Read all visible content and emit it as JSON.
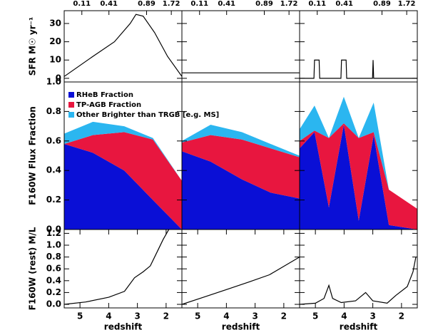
{
  "chart_data": [
    {
      "type": "line",
      "ylabel": "SFR M☉ yr⁻¹",
      "top_tick_labels": [
        "0.11",
        "0.41",
        "0.89",
        "1.72"
      ],
      "xlim": [
        5.55,
        1.45
      ],
      "ylim": [
        -2,
        37
      ],
      "yticks": [
        0,
        10,
        20,
        30
      ],
      "color": "#000000",
      "x": [
        5.55,
        4.55,
        3.8,
        3.25,
        3.05,
        2.8,
        2.4,
        1.95,
        1.45
      ],
      "values": [
        1,
        12,
        20,
        30,
        35,
        34,
        25,
        12,
        1
      ]
    },
    {
      "type": "line",
      "top_tick_labels": [
        "0.11",
        "0.41",
        "0.89",
        "1.72"
      ],
      "xlim": [
        5.55,
        1.45
      ],
      "ylim": [
        -2,
        37
      ],
      "yticks": [
        0,
        10,
        20,
        30
      ],
      "color": "#000000",
      "x": [
        5.55,
        1.45
      ],
      "values": [
        3,
        3
      ]
    },
    {
      "type": "line",
      "top_tick_labels": [
        "0.11",
        "0.41",
        "0.89",
        "1.72"
      ],
      "xlim": [
        5.55,
        1.45
      ],
      "ylim": [
        -2,
        37
      ],
      "yticks": [
        0,
        10,
        20,
        30
      ],
      "color": "#000000",
      "x": [
        5.55,
        5.05,
        5.03,
        4.87,
        4.85,
        4.11,
        4.09,
        3.93,
        3.91,
        3.01,
        2.99,
        2.97,
        1.45
      ],
      "values": [
        0,
        0,
        10,
        10,
        0,
        0,
        10,
        10,
        0,
        0,
        10,
        0,
        0
      ]
    },
    {
      "type": "area",
      "ylabel": "F160W Flux Fraction",
      "xlim": [
        5.55,
        1.45
      ],
      "ylim": [
        0,
        1
      ],
      "yticks": [
        {
          "value": 0,
          "label": "0.0"
        },
        0.2,
        0.4,
        0.6,
        0.8,
        {
          "value": 1,
          "label": "1.0"
        }
      ],
      "x": [
        5.55,
        4.55,
        3.46,
        2.46,
        1.45
      ],
      "series": [
        {
          "name": "RHeB Fraction",
          "color": "#0a0fd6",
          "values": [
            0.58,
            0.52,
            0.4,
            0.2,
            0.0
          ]
        },
        {
          "name": "TP-AGB Fraction",
          "color": "#e8163f",
          "values": [
            0.0,
            0.12,
            0.26,
            0.41,
            0.33
          ]
        },
        {
          "name": "Other Brighter than TRGB [e.g. MS]",
          "color": "#2bb6f0",
          "values": [
            0.07,
            0.09,
            0.04,
            0.01,
            0.0
          ]
        }
      ]
    },
    {
      "type": "area",
      "xlim": [
        5.55,
        1.45
      ],
      "ylim": [
        0,
        1
      ],
      "yticks": [
        0,
        0.2,
        0.4,
        0.6,
        0.8,
        1
      ],
      "x": [
        5.55,
        4.55,
        3.46,
        2.46,
        1.45
      ],
      "series": [
        {
          "color": "#0a0fd6",
          "values": [
            0.53,
            0.46,
            0.34,
            0.25,
            0.21
          ]
        },
        {
          "color": "#e8163f",
          "values": [
            0.06,
            0.18,
            0.27,
            0.3,
            0.28
          ]
        },
        {
          "color": "#2bb6f0",
          "values": [
            0.01,
            0.07,
            0.05,
            0.03,
            0.01
          ]
        }
      ]
    },
    {
      "type": "area",
      "xlim": [
        5.55,
        1.45
      ],
      "ylim": [
        0,
        1
      ],
      "yticks": [
        0,
        0.2,
        0.4,
        0.6,
        0.8,
        1
      ],
      "x": [
        5.55,
        5.03,
        4.53,
        4.01,
        3.49,
        2.97,
        2.44,
        1.45
      ],
      "series": [
        {
          "color": "#0a0fd6",
          "values": [
            0.55,
            0.66,
            0.15,
            0.71,
            0.06,
            0.64,
            0.03,
            0.0
          ]
        },
        {
          "color": "#e8163f",
          "values": [
            0.05,
            0.01,
            0.47,
            0.01,
            0.56,
            0.02,
            0.24,
            0.14
          ]
        },
        {
          "color": "#2bb6f0",
          "values": [
            0.08,
            0.17,
            0.0,
            0.18,
            0.0,
            0.2,
            0.0,
            0.0
          ]
        }
      ]
    },
    {
      "type": "line",
      "ylabel": "F160W (rest) M/L",
      "xlabel": "redshift",
      "xlim": [
        5.55,
        1.45
      ],
      "xticks": [
        5,
        4,
        3,
        2
      ],
      "ylim": [
        -0.06,
        1.265
      ],
      "yticks": [
        {
          "value": 0,
          "label": "0.0"
        },
        0.2,
        0.4,
        0.6,
        0.8,
        {
          "value": 1,
          "label": "1.0"
        },
        1.2
      ],
      "color": "#000000",
      "x": [
        5.55,
        4.8,
        4.0,
        3.45,
        3.1,
        2.8,
        2.55,
        2.3,
        2.1,
        1.9
      ],
      "values": [
        0.0,
        0.04,
        0.12,
        0.22,
        0.45,
        0.55,
        0.65,
        0.9,
        1.1,
        1.27
      ]
    },
    {
      "type": "line",
      "xlabel": "redshift",
      "xlim": [
        5.55,
        1.45
      ],
      "xticks": [
        5,
        4,
        3,
        2
      ],
      "ylim": [
        -0.06,
        1.265
      ],
      "yticks": [
        0,
        0.2,
        0.4,
        0.6,
        0.8,
        1,
        1.2
      ],
      "color": "#000000",
      "x": [
        5.55,
        4.8,
        4.0,
        3.2,
        2.5,
        1.45
      ],
      "values": [
        0.0,
        0.12,
        0.25,
        0.38,
        0.5,
        0.8
      ]
    },
    {
      "type": "line",
      "xlabel": "redshift",
      "xlim": [
        5.55,
        1.45
      ],
      "xticks": [
        5,
        4,
        3,
        2
      ],
      "ylim": [
        -0.06,
        1.265
      ],
      "yticks": [
        0,
        0.2,
        0.4,
        0.6,
        0.8,
        1,
        1.2
      ],
      "color": "#000000",
      "x": [
        5.55,
        5.0,
        4.7,
        4.53,
        4.4,
        4.1,
        3.6,
        3.25,
        3.0,
        2.5,
        2.2,
        1.8,
        1.6,
        1.5
      ],
      "values": [
        0.0,
        0.02,
        0.1,
        0.32,
        0.1,
        0.03,
        0.06,
        0.2,
        0.06,
        0.02,
        0.15,
        0.3,
        0.55,
        0.8
      ]
    }
  ]
}
